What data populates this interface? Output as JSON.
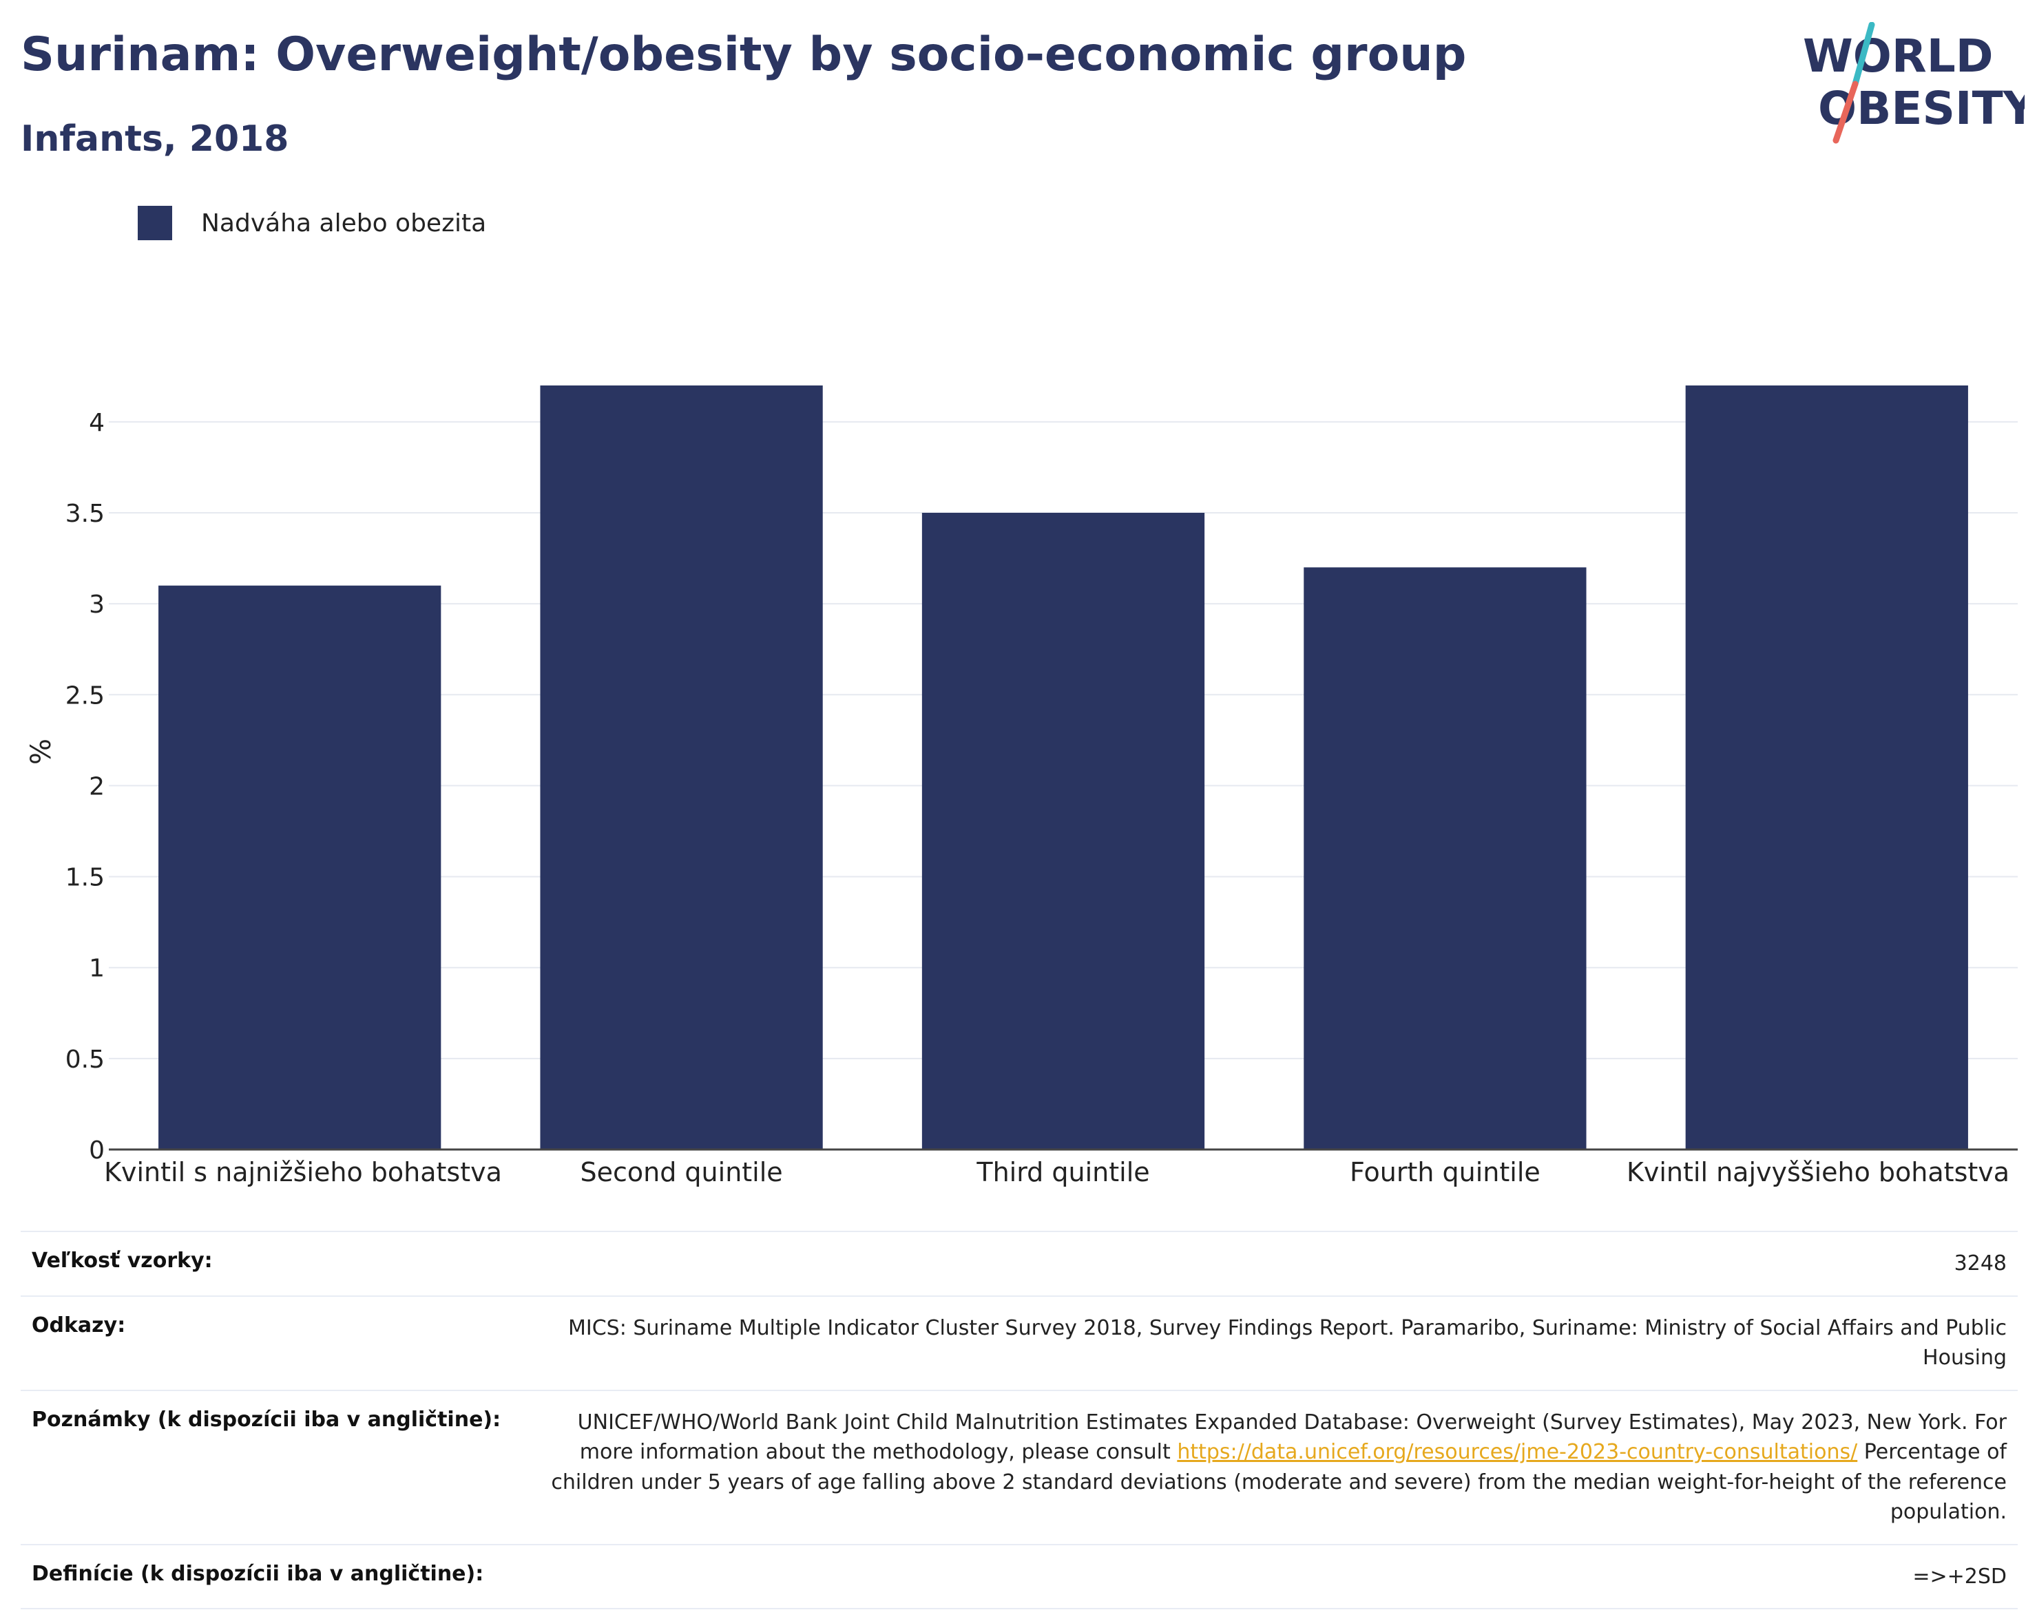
{
  "header": {
    "title": "Surinam: Overweight/obesity by socio-economic group",
    "subtitle": "Infants, 2018"
  },
  "logo": {
    "line1": "WORLD",
    "line2": "OBESITY",
    "colors": {
      "text": "#2b3561",
      "slash_top": "#3bb9c4",
      "slash_bottom": "#e8665a"
    }
  },
  "colors": {
    "bar": "#2a3561",
    "grid": "#e6e9f0",
    "axis": "#444444"
  },
  "chart_data": {
    "type": "bar",
    "categories": [
      "Kvintil s najnižšieho bohatstva",
      "Second quintile",
      "Third quintile",
      "Fourth quintile",
      "Kvintil najvyššieho bohatstva"
    ],
    "series": [
      {
        "name": "Nadváha alebo obezita",
        "values": [
          3.1,
          4.2,
          3.5,
          3.2,
          4.2
        ]
      }
    ],
    "ylabel": "%",
    "ylim": [
      0,
      4.2
    ],
    "yticks": [
      0,
      0.5,
      1,
      1.5,
      2,
      2.5,
      3,
      3.5,
      4
    ],
    "ytick_labels": [
      "0",
      "0.5",
      "1",
      "1.5",
      "2",
      "2.5",
      "3",
      "3.5",
      "4"
    ],
    "grid": true,
    "legend_position": "top-left"
  },
  "meta": {
    "sample_size": {
      "label": "Veľkosť vzorky:",
      "value": "3248"
    },
    "references": {
      "label": "Odkazy:",
      "value": "MICS: Suriname Multiple Indicator Cluster Survey 2018, Survey Findings Report. Paramaribo, Suriname: Ministry of Social Affairs and Public Housing"
    },
    "notes": {
      "label": "Poznámky (k dispozícii iba v angličtine):",
      "text_before": "UNICEF/WHO/World Bank Joint Child Malnutrition Estimates Expanded Database: Overweight (Survey Estimates), May 2023, New York. For more information about the methodology, please consult ",
      "link": "https://data.unicef.org/resources/jme-2023-country-consultations/",
      "text_after": " Percentage of children under 5 years of age falling above 2 standard deviations (moderate and severe) from the median weight-for-height of the reference population."
    },
    "definitions": {
      "label": "Definície (k dispozícii iba v angličtine):",
      "value": "=>+2SD"
    }
  }
}
